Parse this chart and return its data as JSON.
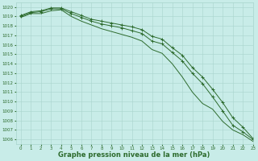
{
  "background_color": "#c8ece8",
  "grid_color": "#a8d4cc",
  "line_color": "#2d6b2d",
  "xlabel": "Graphe pression niveau de la mer (hPa)",
  "xlabel_fontsize": 6.0,
  "ylim": [
    1005.5,
    1020.5
  ],
  "xlim": [
    -0.5,
    23
  ],
  "yticks": [
    1006,
    1007,
    1008,
    1009,
    1010,
    1011,
    1012,
    1013,
    1014,
    1015,
    1016,
    1017,
    1018,
    1019,
    1020
  ],
  "xticks": [
    0,
    1,
    2,
    3,
    4,
    5,
    6,
    7,
    8,
    9,
    10,
    11,
    12,
    13,
    14,
    15,
    16,
    17,
    18,
    19,
    20,
    21,
    22,
    23
  ],
  "line_upper": [
    1019.1,
    1019.5,
    1019.6,
    1019.9,
    1019.9,
    1019.5,
    1019.1,
    1018.7,
    1018.5,
    1018.3,
    1018.1,
    1017.9,
    1017.6,
    1016.9,
    1016.6,
    1015.7,
    1014.9,
    1013.6,
    1012.6,
    1011.3,
    1009.9,
    1008.3,
    1007.3,
    1006.1
  ],
  "line_middle": [
    1019.0,
    1019.4,
    1019.5,
    1019.8,
    1019.8,
    1019.3,
    1018.9,
    1018.5,
    1018.2,
    1018.0,
    1017.8,
    1017.5,
    1017.2,
    1016.4,
    1016.1,
    1015.2,
    1014.3,
    1013.0,
    1011.9,
    1010.5,
    1009.0,
    1007.5,
    1006.8,
    1006.0
  ],
  "line_lower": [
    1018.9,
    1019.3,
    1019.3,
    1019.6,
    1019.7,
    1019.0,
    1018.5,
    1018.1,
    1017.7,
    1017.4,
    1017.1,
    1016.8,
    1016.4,
    1015.5,
    1015.1,
    1014.0,
    1012.6,
    1011.0,
    1009.8,
    1009.2,
    1007.9,
    1007.0,
    1006.5,
    1005.8
  ]
}
